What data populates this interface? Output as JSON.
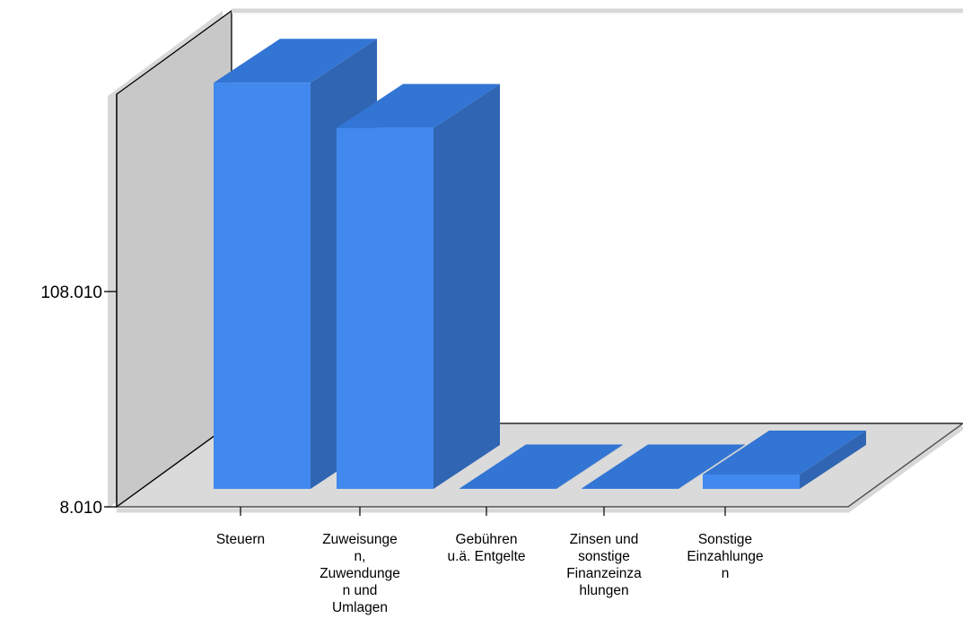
{
  "chart_data": {
    "type": "bar",
    "style": "3d",
    "categories": [
      [
        "Steuern"
      ],
      [
        "Zuweisunge",
        "n,",
        "Zuwendunge",
        "n und",
        "Umlagen"
      ],
      [
        "Gebühren",
        "u.ä. Entgelte"
      ],
      [
        "Zinsen und",
        "sonstige",
        "Finanzeinza",
        "hlungen"
      ],
      [
        "Sonstige",
        "Einzahlunge",
        "n"
      ]
    ],
    "series": [
      {
        "values": [
          205000,
          184000,
          15000,
          8010,
          23000
        ]
      }
    ],
    "yticks": [
      {
        "value": 8010,
        "label": "8.010"
      },
      {
        "value": 108010,
        "label": "108.010"
      }
    ],
    "ylim": [
      8010,
      208010
    ],
    "grid": false,
    "legend": "none",
    "colors": {
      "bar_front": "#4189ee",
      "bar_top": "#3275d4",
      "bar_side": "#2f65b3",
      "back_wall": "#ffffff",
      "side_wall": "#c8c8c8",
      "floor": "#dadada",
      "wall_edge": "#d8d8d8",
      "axis": "#000000"
    }
  }
}
